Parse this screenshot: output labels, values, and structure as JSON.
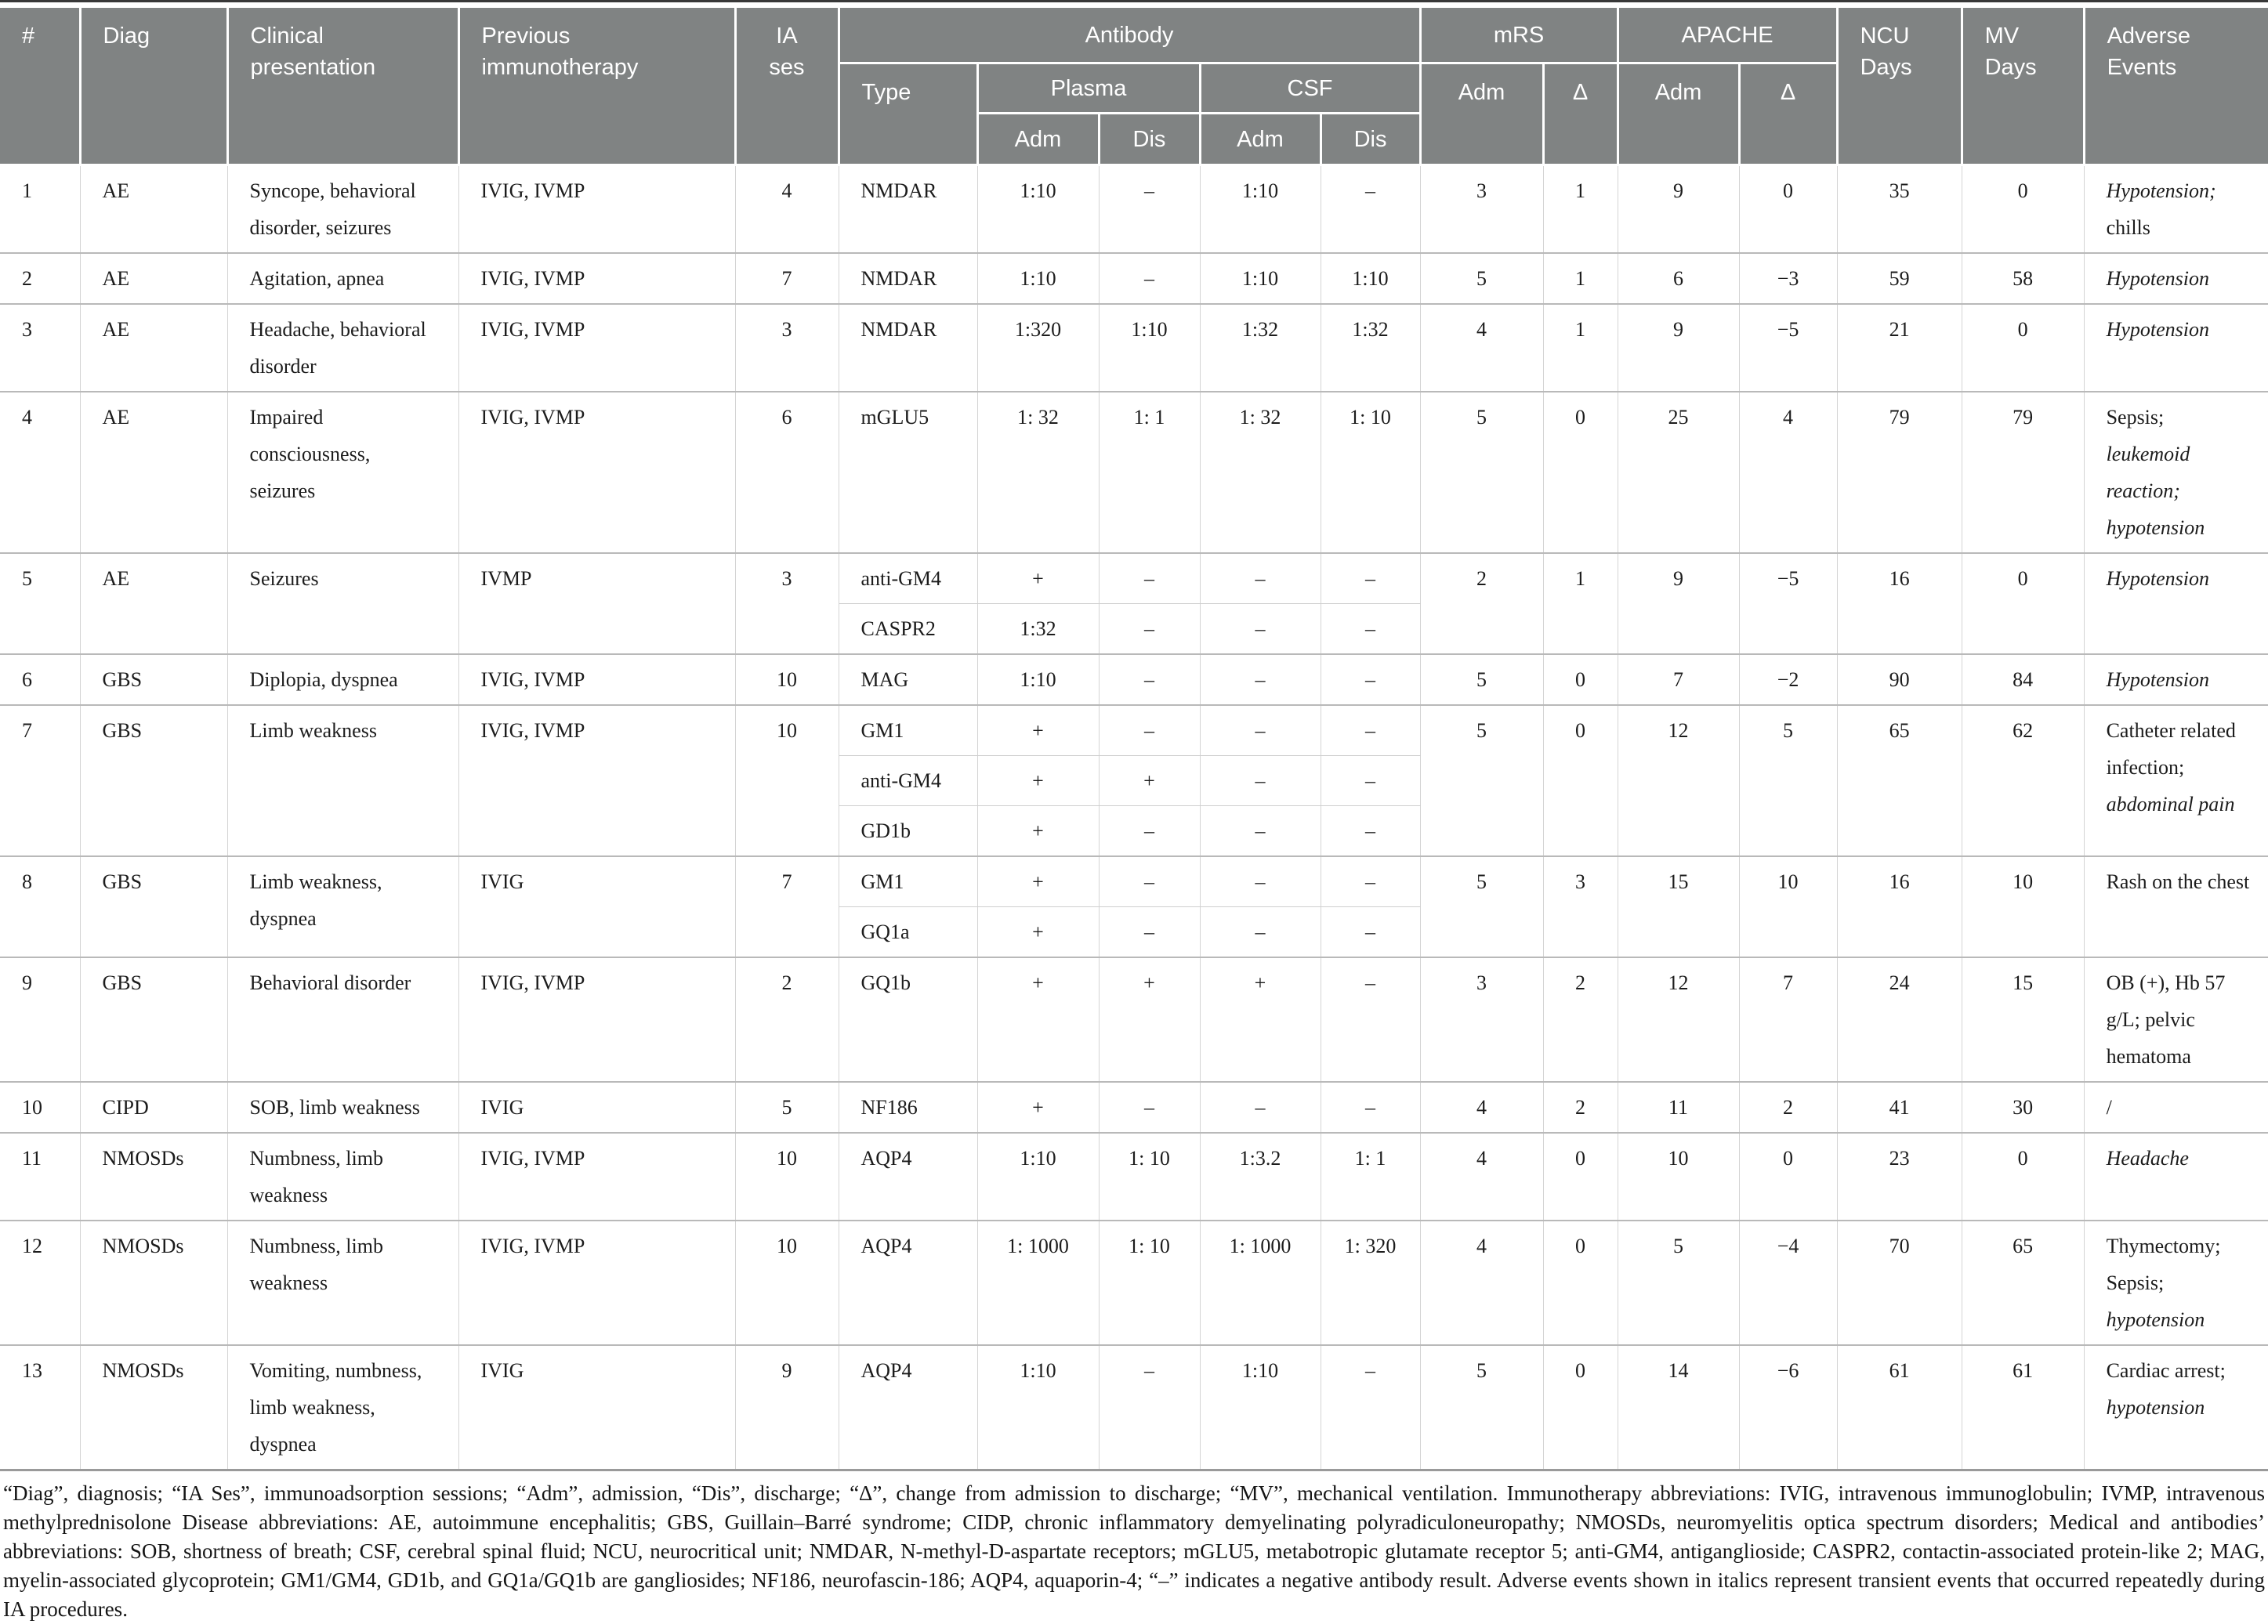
{
  "colors": {
    "header_bg": "#808383",
    "header_text": "#ffffff",
    "body_text": "#1c1c1c",
    "grid": "#d4d4d4",
    "row_divider": "#b9b9b9",
    "sub_divider": "#cfcfcf",
    "top_rule": "#383838",
    "bottom_rule": "#9a9a9a",
    "page_bg": "#ffffff"
  },
  "table": {
    "header": {
      "hash": "#",
      "diag": "Diag",
      "clinical": "Clinical\npresentation",
      "previous": "Previous\nimmunotherapy",
      "ia": "IA\nses",
      "antibody": "Antibody",
      "type": "Type",
      "plasma": "Plasma",
      "csf": "CSF",
      "adm": "Adm",
      "dis": "Dis",
      "mrs": "mRS",
      "delta": "Δ",
      "apache": "APACHE",
      "ncu": "NCU\nDays",
      "mv": "MV\nDays",
      "adverse": "Adverse\nEvents"
    },
    "rows": [
      {
        "num": "1",
        "diag": "AE",
        "clinical": "Syncope, behavioral disorder, seizures",
        "previous": "IVIG, IVMP",
        "ia": "4",
        "antibodies": [
          {
            "type": "NMDAR",
            "plasma_adm": "1:10",
            "plasma_dis": "–",
            "csf_adm": "1:10",
            "csf_dis": "–"
          }
        ],
        "mrs_adm": "3",
        "mrs_delta": "1",
        "apache_adm": "9",
        "apache_delta": "0",
        "ncu_days": "35",
        "mv_days": "0",
        "adverse": [
          {
            "text": "Hypotension;",
            "italic": true
          },
          {
            "text": "chills",
            "italic": false
          }
        ]
      },
      {
        "num": "2",
        "diag": "AE",
        "clinical": "Agitation, apnea",
        "previous": "IVIG, IVMP",
        "ia": "7",
        "antibodies": [
          {
            "type": "NMDAR",
            "plasma_adm": "1:10",
            "plasma_dis": "–",
            "csf_adm": "1:10",
            "csf_dis": "1:10"
          }
        ],
        "mrs_adm": "5",
        "mrs_delta": "1",
        "apache_adm": "6",
        "apache_delta": "−3",
        "ncu_days": "59",
        "mv_days": "58",
        "adverse": [
          {
            "text": "Hypotension",
            "italic": true
          }
        ]
      },
      {
        "num": "3",
        "diag": "AE",
        "clinical": "Headache, behavioral disorder",
        "previous": "IVIG, IVMP",
        "ia": "3",
        "antibodies": [
          {
            "type": "NMDAR",
            "plasma_adm": "1:320",
            "plasma_dis": "1:10",
            "csf_adm": "1:32",
            "csf_dis": "1:32"
          }
        ],
        "mrs_adm": "4",
        "mrs_delta": "1",
        "apache_adm": "9",
        "apache_delta": "−5",
        "ncu_days": "21",
        "mv_days": "0",
        "adverse": [
          {
            "text": "Hypotension",
            "italic": true
          }
        ]
      },
      {
        "num": "4",
        "diag": "AE",
        "clinical": "Impaired consciousness, seizures",
        "previous": "IVIG, IVMP",
        "ia": "6",
        "antibodies": [
          {
            "type": "mGLU5",
            "plasma_adm": "1: 32",
            "plasma_dis": "1: 1",
            "csf_adm": "1: 32",
            "csf_dis": "1: 10"
          }
        ],
        "mrs_adm": "5",
        "mrs_delta": "0",
        "apache_adm": "25",
        "apache_delta": "4",
        "ncu_days": "79",
        "mv_days": "79",
        "adverse": [
          {
            "text": "Sepsis;",
            "italic": false
          },
          {
            "text": "leukemoid reaction;",
            "italic": true
          },
          {
            "text": "hypotension",
            "italic": true
          }
        ]
      },
      {
        "num": "5",
        "diag": "AE",
        "clinical": "Seizures",
        "previous": "IVMP",
        "ia": "3",
        "antibodies": [
          {
            "type": "anti-GM4",
            "plasma_adm": "+",
            "plasma_dis": "–",
            "csf_adm": "–",
            "csf_dis": "–"
          },
          {
            "type": "CASPR2",
            "plasma_adm": "1:32",
            "plasma_dis": "–",
            "csf_adm": "–",
            "csf_dis": "–"
          }
        ],
        "mrs_adm": "2",
        "mrs_delta": "1",
        "apache_adm": "9",
        "apache_delta": "−5",
        "ncu_days": "16",
        "mv_days": "0",
        "adverse": [
          {
            "text": "Hypotension",
            "italic": true
          }
        ]
      },
      {
        "num": "6",
        "diag": "GBS",
        "clinical": "Diplopia, dyspnea",
        "previous": "IVIG, IVMP",
        "ia": "10",
        "antibodies": [
          {
            "type": "MAG",
            "plasma_adm": "1:10",
            "plasma_dis": "–",
            "csf_adm": "–",
            "csf_dis": "–"
          }
        ],
        "mrs_adm": "5",
        "mrs_delta": "0",
        "apache_adm": "7",
        "apache_delta": "−2",
        "ncu_days": "90",
        "mv_days": "84",
        "adverse": [
          {
            "text": "Hypotension",
            "italic": true
          }
        ]
      },
      {
        "num": "7",
        "diag": "GBS",
        "clinical": "Limb weakness",
        "previous": "IVIG, IVMP",
        "ia": "10",
        "antibodies": [
          {
            "type": "GM1",
            "plasma_adm": "+",
            "plasma_dis": "–",
            "csf_adm": "–",
            "csf_dis": "–"
          },
          {
            "type": "anti-GM4",
            "plasma_adm": "+",
            "plasma_dis": "+",
            "csf_adm": "–",
            "csf_dis": "–"
          },
          {
            "type": "GD1b",
            "plasma_adm": "+",
            "plasma_dis": "–",
            "csf_adm": "–",
            "csf_dis": "–"
          }
        ],
        "mrs_adm": "5",
        "mrs_delta": "0",
        "apache_adm": "12",
        "apache_delta": "5",
        "ncu_days": "65",
        "mv_days": "62",
        "adverse": [
          {
            "text": "Catheter related infection;",
            "italic": false
          },
          {
            "text": "abdominal pain",
            "italic": true
          }
        ]
      },
      {
        "num": "8",
        "diag": "GBS",
        "clinical": "Limb weakness, dyspnea",
        "previous": "IVIG",
        "ia": "7",
        "antibodies": [
          {
            "type": "GM1",
            "plasma_adm": "+",
            "plasma_dis": "–",
            "csf_adm": "–",
            "csf_dis": "–"
          },
          {
            "type": "GQ1a",
            "plasma_adm": "+",
            "plasma_dis": "–",
            "csf_adm": "–",
            "csf_dis": "–"
          }
        ],
        "mrs_adm": "5",
        "mrs_delta": "3",
        "apache_adm": "15",
        "apache_delta": "10",
        "ncu_days": "16",
        "mv_days": "10",
        "adverse": [
          {
            "text": "Rash on the chest",
            "italic": false
          }
        ]
      },
      {
        "num": "9",
        "diag": "GBS",
        "clinical": "Behavioral disorder",
        "previous": "IVIG, IVMP",
        "ia": "2",
        "antibodies": [
          {
            "type": "GQ1b",
            "plasma_adm": "+",
            "plasma_dis": "+",
            "csf_adm": "+",
            "csf_dis": "–"
          }
        ],
        "mrs_adm": "3",
        "mrs_delta": "2",
        "apache_adm": "12",
        "apache_delta": "7",
        "ncu_days": "24",
        "mv_days": "15",
        "adverse": [
          {
            "text": "OB (+), Hb 57 g/L; pelvic hematoma",
            "italic": false
          }
        ]
      },
      {
        "num": "10",
        "diag": "CIPD",
        "clinical": "SOB, limb weakness",
        "previous": "IVIG",
        "ia": "5",
        "antibodies": [
          {
            "type": "NF186",
            "plasma_adm": "+",
            "plasma_dis": "–",
            "csf_adm": "–",
            "csf_dis": "–"
          }
        ],
        "mrs_adm": "4",
        "mrs_delta": "2",
        "apache_adm": "11",
        "apache_delta": "2",
        "ncu_days": "41",
        "mv_days": "30",
        "adverse": [
          {
            "text": "/",
            "italic": false
          }
        ]
      },
      {
        "num": "11",
        "diag": "NMOSDs",
        "clinical": "Numbness, limb weakness",
        "previous": "IVIG, IVMP",
        "ia": "10",
        "antibodies": [
          {
            "type": "AQP4",
            "plasma_adm": "1:10",
            "plasma_dis": "1: 10",
            "csf_adm": "1:3.2",
            "csf_dis": "1: 1"
          }
        ],
        "mrs_adm": "4",
        "mrs_delta": "0",
        "apache_adm": "10",
        "apache_delta": "0",
        "ncu_days": "23",
        "mv_days": "0",
        "adverse": [
          {
            "text": "Headache",
            "italic": true
          }
        ]
      },
      {
        "num": "12",
        "diag": "NMOSDs",
        "clinical": "Numbness, limb weakness",
        "previous": "IVIG, IVMP",
        "ia": "10",
        "antibodies": [
          {
            "type": "AQP4",
            "plasma_adm": "1: 1000",
            "plasma_dis": "1: 10",
            "csf_adm": "1: 1000",
            "csf_dis": "1: 320"
          }
        ],
        "mrs_adm": "4",
        "mrs_delta": "0",
        "apache_adm": "5",
        "apache_delta": "−4",
        "ncu_days": "70",
        "mv_days": "65",
        "adverse": [
          {
            "text": "Thymectomy;",
            "italic": false
          },
          {
            "text": "Sepsis;",
            "italic": false
          },
          {
            "text": "hypotension",
            "italic": true
          }
        ]
      },
      {
        "num": "13",
        "diag": "NMOSDs",
        "clinical": "Vomiting, numbness, limb weakness, dyspnea",
        "previous": "IVIG",
        "ia": "9",
        "antibodies": [
          {
            "type": "AQP4",
            "plasma_adm": "1:10",
            "plasma_dis": "–",
            "csf_adm": "1:10",
            "csf_dis": "–"
          }
        ],
        "mrs_adm": "5",
        "mrs_delta": "0",
        "apache_adm": "14",
        "apache_delta": "−6",
        "ncu_days": "61",
        "mv_days": "61",
        "adverse": [
          {
            "text": "Cardiac arrest;",
            "italic": false
          },
          {
            "text": "hypotension",
            "italic": true
          }
        ]
      }
    ],
    "footnote": "“Diag”, diagnosis; “IA Ses”, immunoadsorption sessions; “Adm”, admission, “Dis”, discharge; “Δ”, change from admission to discharge; “MV”, mechanical ventilation. Immunotherapy abbreviations: IVIG, intravenous immunoglobulin; IVMP, intravenous methylprednisolone Disease abbreviations: AE, autoimmune encephalitis; GBS, Guillain–Barré syndrome; CIDP, chronic inflammatory demyelinating polyradiculoneuropathy; NMOSDs, neuromyelitis optica spectrum disorders; Medical and antibodies’ abbreviations: SOB, shortness of breath; CSF, cerebral spinal fluid; NCU, neurocritical unit; NMDAR, N-methyl-D-aspartate receptors; mGLU5, metabotropic glutamate receptor 5; anti-GM4, antiganglioside; CASPR2, contactin-associated protein-like 2; MAG, myelin-associated glycoprotein; GM1/GM4, GD1b, and GQ1a/GQ1b are gangliosides; NF186, neurofascin-186; AQP4, aquaporin-4; “–” indicates a negative antibody result. Adverse events shown in italics represent transient events that occurred repeatedly during IA procedures."
  }
}
